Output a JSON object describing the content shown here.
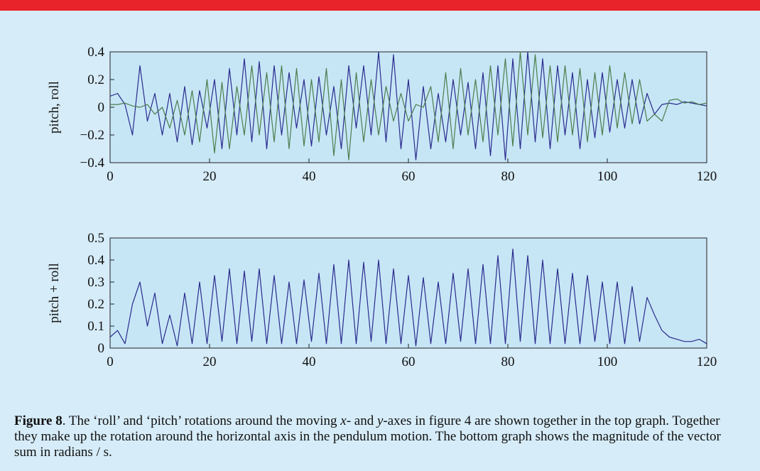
{
  "chart_data": [
    {
      "type": "line",
      "ylabel": "pitch, roll",
      "x": [
        0,
        1.5,
        3,
        4.5,
        6,
        7.5,
        9,
        10.5,
        12,
        13.5,
        15,
        16.5,
        18,
        19.5,
        21,
        22.5,
        24,
        25.5,
        27,
        28.5,
        30,
        31.5,
        33,
        34.5,
        36,
        37.5,
        39,
        40.5,
        42,
        43.5,
        45,
        46.5,
        48,
        49.5,
        51,
        52.5,
        54,
        55.5,
        57,
        58.5,
        60,
        61.5,
        63,
        64.5,
        66,
        67.5,
        69,
        70.5,
        72,
        73.5,
        75,
        76.5,
        78,
        79.5,
        81,
        82.5,
        84,
        85.5,
        87,
        88.5,
        90,
        91.5,
        93,
        94.5,
        96,
        97.5,
        99,
        100.5,
        102,
        103.5,
        105,
        106.5,
        108,
        109.5,
        111,
        112.5,
        114,
        115.5,
        117,
        118.5,
        120
      ],
      "series": [
        {
          "color": "#2b2b8c",
          "values": [
            0.08,
            0.1,
            0.02,
            -0.2,
            0.3,
            -0.1,
            0.1,
            -0.2,
            0.1,
            -0.25,
            0.15,
            -0.27,
            0.12,
            -0.15,
            0.2,
            -0.3,
            0.28,
            -0.2,
            0.35,
            -0.25,
            0.33,
            -0.3,
            0.3,
            -0.2,
            0.25,
            -0.15,
            0.2,
            -0.28,
            0.22,
            -0.2,
            0.15,
            -0.3,
            0.3,
            -0.15,
            0.3,
            -0.2,
            0.4,
            -0.25,
            0.38,
            -0.3,
            0.2,
            -0.38,
            0.15,
            -0.3,
            0.1,
            -0.25,
            0.2,
            -0.2,
            0.18,
            -0.3,
            0.25,
            -0.35,
            0.3,
            -0.38,
            0.35,
            -0.3,
            0.4,
            -0.25,
            0.35,
            -0.3,
            0.3,
            -0.2,
            0.25,
            -0.3,
            0.2,
            -0.22,
            0.25,
            -0.18,
            0.2,
            -0.15,
            0.2,
            -0.12,
            0.1,
            -0.05,
            0.02,
            0.03,
            0.02,
            0.04,
            0.03,
            0.02,
            0.01
          ]
        },
        {
          "color": "#4d7d4d",
          "values": [
            0.02,
            0.02,
            0.03,
            0.01,
            0,
            0.02,
            -0.05,
            0,
            -0.15,
            0.05,
            -0.2,
            0.12,
            -0.25,
            0.2,
            -0.33,
            0.18,
            -0.3,
            0.15,
            -0.2,
            0.3,
            -0.2,
            0.25,
            -0.25,
            0.3,
            -0.3,
            0.28,
            -0.28,
            0.2,
            -0.25,
            0.28,
            -0.35,
            0.2,
            -0.38,
            0.25,
            -0.25,
            0.2,
            -0.2,
            0.15,
            -0.1,
            0.1,
            -0.1,
            0.02,
            0,
            0.15,
            -0.25,
            0.25,
            -0.3,
            0.28,
            -0.2,
            0.2,
            -0.25,
            0.3,
            -0.2,
            0.35,
            -0.28,
            0.4,
            -0.2,
            0.38,
            -0.22,
            0.3,
            -0.25,
            0.3,
            -0.2,
            0.28,
            -0.25,
            0.25,
            -0.2,
            0.3,
            -0.15,
            0.25,
            -0.12,
            0.2,
            -0.1,
            -0.05,
            -0.1,
            0.05,
            0.06,
            0.03,
            0.04,
            0.02,
            0.03
          ]
        }
      ],
      "xlim": [
        0,
        120
      ],
      "xticks": [
        0,
        20,
        40,
        60,
        80,
        100,
        120
      ],
      "ylim": [
        -0.4,
        0.4
      ],
      "yticks": [
        {
          "value": -0.4,
          "label": "−0.4"
        },
        {
          "value": -0.2,
          "label": "−0.2"
        },
        0,
        0.2,
        0.4
      ]
    },
    {
      "type": "line",
      "ylabel": "pitch + roll",
      "x": [
        0,
        1.5,
        3,
        4.5,
        6,
        7.5,
        9,
        10.5,
        12,
        13.5,
        15,
        16.5,
        18,
        19.5,
        21,
        22.5,
        24,
        25.5,
        27,
        28.5,
        30,
        31.5,
        33,
        34.5,
        36,
        37.5,
        39,
        40.5,
        42,
        43.5,
        45,
        46.5,
        48,
        49.5,
        51,
        52.5,
        54,
        55.5,
        57,
        58.5,
        60,
        61.5,
        63,
        64.5,
        66,
        67.5,
        69,
        70.5,
        72,
        73.5,
        75,
        76.5,
        78,
        79.5,
        81,
        82.5,
        84,
        85.5,
        87,
        88.5,
        90,
        91.5,
        93,
        94.5,
        96,
        97.5,
        99,
        100.5,
        102,
        103.5,
        105,
        106.5,
        108,
        109.5,
        111,
        112.5,
        114,
        115.5,
        117,
        118.5,
        120
      ],
      "series": [
        {
          "color": "#2b2b8c",
          "values": [
            0.05,
            0.08,
            0.02,
            0.2,
            0.3,
            0.1,
            0.25,
            0.02,
            0.15,
            0.01,
            0.25,
            0.02,
            0.3,
            0.02,
            0.33,
            0.03,
            0.36,
            0.02,
            0.35,
            0.03,
            0.36,
            0.02,
            0.33,
            0.02,
            0.3,
            0.02,
            0.31,
            0.03,
            0.34,
            0.02,
            0.38,
            0.02,
            0.4,
            0.02,
            0.39,
            0.03,
            0.4,
            0.02,
            0.36,
            0.02,
            0.33,
            0.01,
            0.32,
            0.02,
            0.3,
            0.02,
            0.34,
            0.03,
            0.36,
            0.02,
            0.38,
            0.02,
            0.42,
            0.02,
            0.45,
            0.03,
            0.42,
            0.02,
            0.4,
            0.02,
            0.36,
            0.02,
            0.34,
            0.02,
            0.33,
            0.03,
            0.3,
            0.02,
            0.3,
            0.02,
            0.28,
            0.03,
            0.23,
            0.15,
            0.08,
            0.05,
            0.04,
            0.03,
            0.03,
            0.04,
            0.02
          ]
        }
      ],
      "xlim": [
        0,
        120
      ],
      "xticks": [
        0,
        20,
        40,
        60,
        80,
        100,
        120
      ],
      "ylim": [
        0,
        0.5
      ],
      "yticks": [
        0,
        0.1,
        0.2,
        0.3,
        0.4,
        0.5
      ]
    }
  ],
  "caption": {
    "label": "Figure 8",
    "parts": [
      ". The ‘roll’ and ‘pitch’ rotations around the moving ",
      "x",
      "- and ",
      "y",
      "-axes in figure 4 are shown together in the top graph. Together they make up the rotation around the horizontal axis in the pendulum motion.  The bottom graph shows the magnitude of the vector sum in radians / s."
    ]
  }
}
